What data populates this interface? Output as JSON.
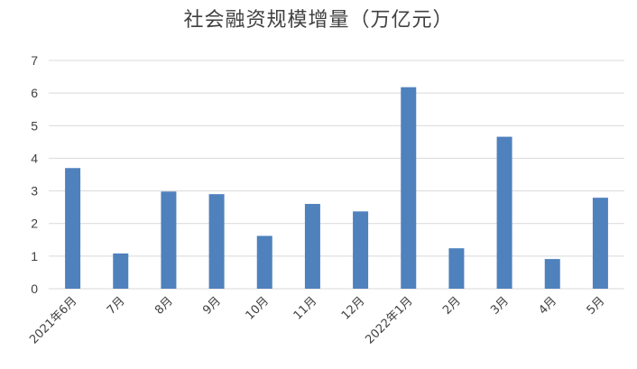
{
  "chart_data": {
    "type": "bar",
    "title": "社会融资规模增量（万亿元）",
    "xlabel": "",
    "ylabel": "",
    "categories": [
      "2021年6月",
      "7月",
      "8月",
      "9月",
      "10月",
      "11月",
      "12月",
      "2022年1月",
      "2月",
      "3月",
      "4月",
      "5月"
    ],
    "values": [
      3.7,
      1.08,
      2.98,
      2.9,
      1.62,
      2.6,
      2.37,
      6.18,
      1.24,
      4.66,
      0.91,
      2.79
    ],
    "ylim": [
      0,
      7
    ],
    "yticks": [
      0,
      1,
      2,
      3,
      4,
      5,
      6,
      7
    ],
    "grid": true,
    "legend": "none",
    "bar_color": "#4f81bd",
    "grid_color": "#d9d9d9"
  }
}
